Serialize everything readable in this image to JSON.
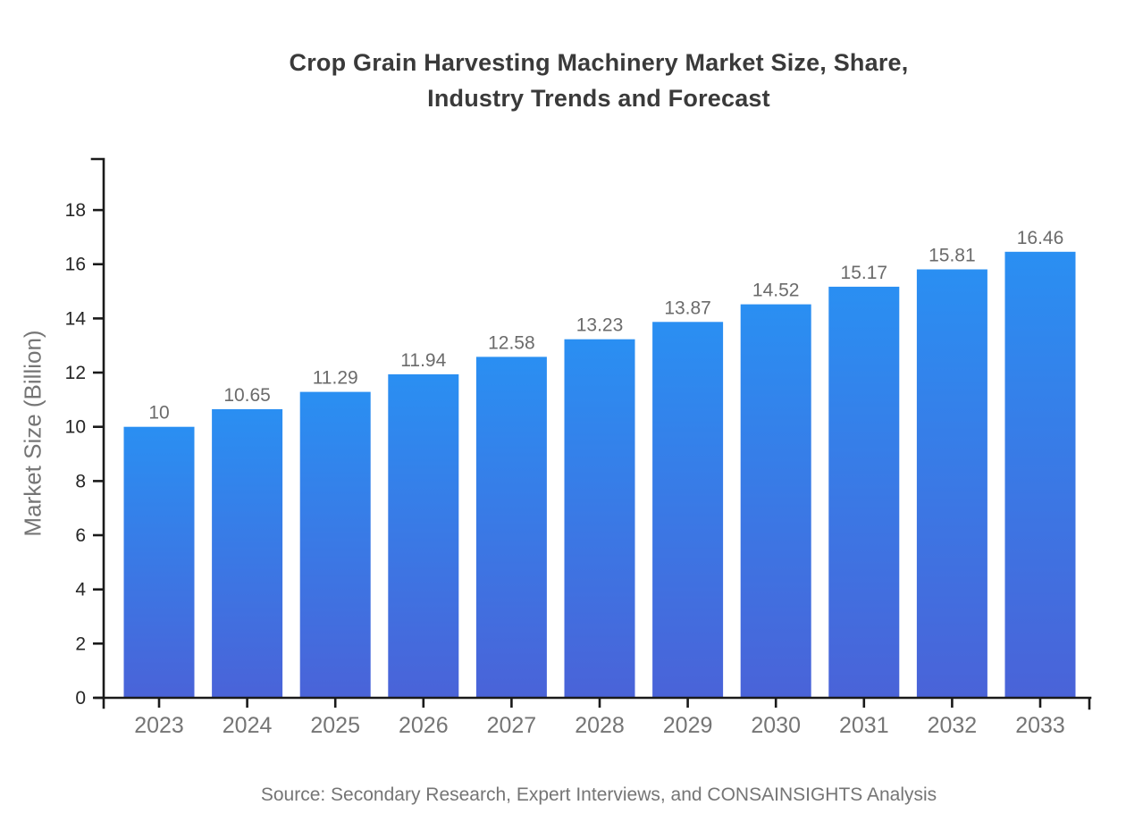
{
  "title": {
    "line1": "Crop Grain Harvesting Machinery Market Size, Share,",
    "line2": "Industry Trends and Forecast"
  },
  "source": "Source: Secondary Research, Expert Interviews, and CONSAINSIGHTS Analysis",
  "chart_data": {
    "type": "bar",
    "title": "Crop Grain Harvesting Machinery Market Size, Share, Industry Trends and Forecast",
    "categories": [
      "2023",
      "2024",
      "2025",
      "2026",
      "2027",
      "2028",
      "2029",
      "2030",
      "2031",
      "2032",
      "2033"
    ],
    "values": [
      10,
      10.65,
      11.29,
      11.94,
      12.58,
      13.23,
      13.87,
      14.52,
      15.17,
      15.81,
      16.46
    ],
    "value_labels": [
      "10",
      "10.65",
      "11.29",
      "11.94",
      "12.58",
      "13.23",
      "13.87",
      "14.52",
      "15.17",
      "15.81",
      "16.46"
    ],
    "xlabel": "",
    "ylabel": "Market Size (Billion)",
    "ylim": [
      0,
      19.9
    ],
    "yticks": [
      0,
      2,
      4,
      6,
      8,
      10,
      12,
      14,
      16,
      18
    ],
    "grid": false,
    "legend": "none",
    "bar_gradient": {
      "top": "#2a8ff2",
      "bottom": "#4a63d8"
    },
    "colors": {
      "axis": "#1a1a1a",
      "title_text": "#3a3a3a",
      "y_tick_label": "#262626",
      "x_tick_label": "#757575",
      "value_label": "#6b6b6b",
      "source_text": "#757575"
    }
  }
}
